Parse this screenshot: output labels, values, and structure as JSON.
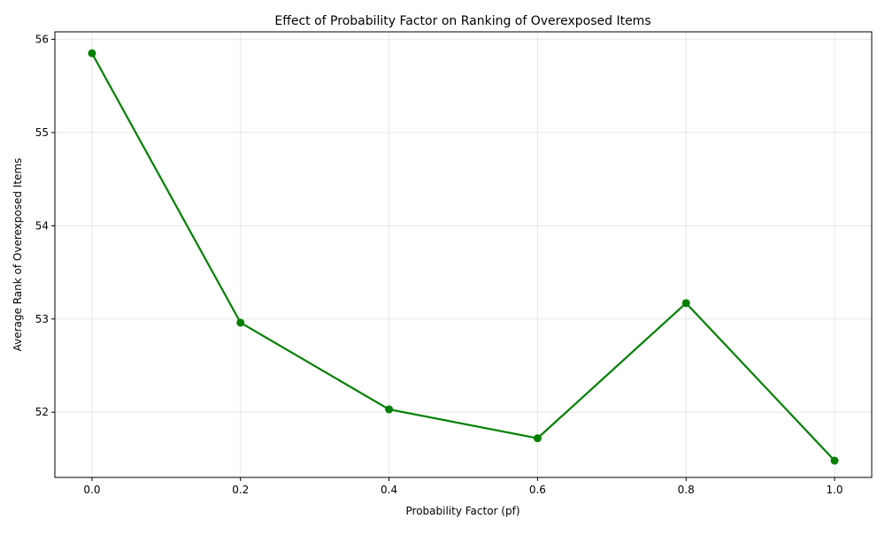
{
  "chart_data": {
    "type": "line",
    "title": "Effect of Probability Factor on Ranking of Overexposed Items",
    "xlabel": "Probability Factor (pf)",
    "ylabel": "Average Rank of Overexposed Items",
    "x": [
      0.0,
      0.2,
      0.4,
      0.6,
      0.8,
      1.0
    ],
    "series": [
      {
        "values": [
          55.85,
          52.96,
          52.03,
          51.72,
          53.17,
          51.48
        ]
      }
    ],
    "xlim": [
      -0.05,
      1.05
    ],
    "ylim": [
      51.3,
      56.08
    ],
    "x_ticks": [
      "0.0",
      "0.2",
      "0.4",
      "0.6",
      "0.8",
      "1.0"
    ],
    "y_ticks": [
      "52",
      "53",
      "54",
      "55",
      "56"
    ],
    "grid": true,
    "line_color": "#008000",
    "marker": "circle"
  }
}
